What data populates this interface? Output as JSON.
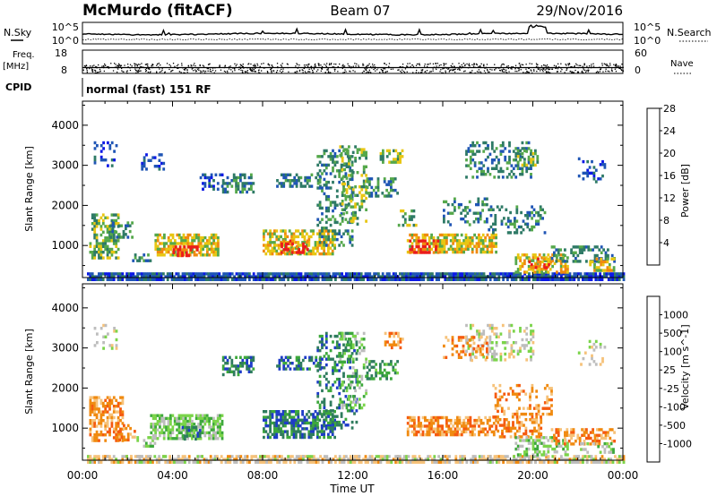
{
  "header": {
    "title": "McMurdo (fitACF)",
    "beam": "Beam 07",
    "date": "29/Nov/2016"
  },
  "chart_data": [
    {
      "type": "line",
      "id": "noise-panel",
      "left_label": "N.Sky",
      "right_label": "N.Search",
      "left_ticks": [
        "10^5",
        "10^0"
      ],
      "right_ticks": [
        "10^5",
        "10^0"
      ],
      "x_range": [
        "00:00",
        "24:00"
      ]
    },
    {
      "type": "scatter",
      "id": "freq-panel",
      "left_label": "Freq.",
      "left_unit": "[MHz]",
      "right_label": "Nave",
      "left_ticks": [
        "18",
        "8"
      ],
      "right_ticks": [
        "60",
        "0"
      ],
      "left_range": [
        8,
        18
      ],
      "right_range": [
        0,
        60
      ]
    },
    {
      "type": "table",
      "id": "cpid-panel",
      "label": "CPID",
      "mode": "normal (fast) 151 RF"
    },
    {
      "type": "heatmap",
      "id": "power-panel",
      "ylabel": "Slant Range [km]",
      "yticks": [
        1000,
        2000,
        3000,
        4000
      ],
      "ylim": [
        200,
        4600
      ],
      "xlim": [
        0,
        24
      ],
      "colorbar": {
        "label": "Power [dB]",
        "ticks": [
          "4",
          "8",
          "12",
          "16",
          "20",
          "24",
          "28"
        ],
        "colors": [
          "#0b18e6",
          "#1f55b5",
          "#2e7a66",
          "#55a84b",
          "#e8c613",
          "#f08a0f",
          "#ea1c1c"
        ]
      },
      "regions": [
        {
          "t": [
            0.2,
            24
          ],
          "r": [
            180,
            330
          ],
          "level": 1,
          "density": 0.9
        },
        {
          "t": [
            0.3,
            1.6
          ],
          "r": [
            700,
            1800
          ],
          "level": 3,
          "density": 0.55
        },
        {
          "t": [
            1.2,
            2.2
          ],
          "r": [
            1200,
            1600
          ],
          "level": 2,
          "density": 0.45
        },
        {
          "t": [
            2.2,
            3.0
          ],
          "r": [
            600,
            800
          ],
          "level": 2,
          "density": 0.35
        },
        {
          "t": [
            3.2,
            6.0
          ],
          "r": [
            750,
            1300
          ],
          "level": 4,
          "density": 0.7
        },
        {
          "t": [
            4.0,
            5.2
          ],
          "r": [
            720,
            1000
          ],
          "level": 6,
          "density": 0.55
        },
        {
          "t": [
            2.6,
            3.6
          ],
          "r": [
            2900,
            3300
          ],
          "level": 1,
          "density": 0.35
        },
        {
          "t": [
            0.5,
            1.5
          ],
          "r": [
            3000,
            3600
          ],
          "level": 1,
          "density": 0.2
        },
        {
          "t": [
            5.2,
            6.2
          ],
          "r": [
            2400,
            2800
          ],
          "level": 1,
          "density": 0.3
        },
        {
          "t": [
            6.2,
            7.6
          ],
          "r": [
            2300,
            2800
          ],
          "level": 2,
          "density": 0.5
        },
        {
          "t": [
            8.0,
            11.2
          ],
          "r": [
            800,
            1400
          ],
          "level": 4,
          "density": 0.65
        },
        {
          "t": [
            8.8,
            10.0
          ],
          "r": [
            850,
            1150
          ],
          "level": 6,
          "density": 0.45
        },
        {
          "t": [
            8.6,
            10.6
          ],
          "r": [
            2500,
            2800
          ],
          "level": 2,
          "density": 0.45
        },
        {
          "t": [
            10.4,
            12.0
          ],
          "r": [
            1000,
            3400
          ],
          "level": 2,
          "density": 0.38
        },
        {
          "t": [
            11.4,
            12.6
          ],
          "r": [
            1500,
            3500
          ],
          "level": 3,
          "density": 0.35
        },
        {
          "t": [
            12.6,
            14.0
          ],
          "r": [
            2200,
            2700
          ],
          "level": 2,
          "density": 0.4
        },
        {
          "t": [
            13.2,
            14.2
          ],
          "r": [
            3100,
            3400
          ],
          "level": 3,
          "density": 0.5
        },
        {
          "t": [
            14.0,
            14.8
          ],
          "r": [
            1500,
            1900
          ],
          "level": 3,
          "density": 0.5
        },
        {
          "t": [
            14.4,
            18.4
          ],
          "r": [
            800,
            1300
          ],
          "level": 4,
          "density": 0.62
        },
        {
          "t": [
            14.5,
            15.8
          ],
          "r": [
            850,
            1150
          ],
          "level": 6,
          "density": 0.55
        },
        {
          "t": [
            16.0,
            18.0
          ],
          "r": [
            1500,
            2200
          ],
          "level": 2,
          "density": 0.3
        },
        {
          "t": [
            18.0,
            20.5
          ],
          "r": [
            1300,
            2000
          ],
          "level": 2,
          "density": 0.3
        },
        {
          "t": [
            17.0,
            20.0
          ],
          "r": [
            2700,
            3600
          ],
          "level": 2,
          "density": 0.38
        },
        {
          "t": [
            19.2,
            20.2
          ],
          "r": [
            3000,
            3400
          ],
          "level": 3,
          "density": 0.4
        },
        {
          "t": [
            19.2,
            21.5
          ],
          "r": [
            350,
            800
          ],
          "level": 4,
          "density": 0.6
        },
        {
          "t": [
            19.8,
            20.8
          ],
          "r": [
            450,
            700
          ],
          "level": 5,
          "density": 0.5
        },
        {
          "t": [
            20.8,
            23.6
          ],
          "r": [
            600,
            1000
          ],
          "level": 2,
          "density": 0.45
        },
        {
          "t": [
            22.5,
            23.6
          ],
          "r": [
            400,
            700
          ],
          "level": 4,
          "density": 0.4
        },
        {
          "t": [
            22.0,
            23.2
          ],
          "r": [
            2600,
            3200
          ],
          "level": 1,
          "density": 0.25
        }
      ]
    },
    {
      "type": "heatmap",
      "id": "velocity-panel",
      "ylabel": "Slant Range [km]",
      "yticks": [
        1000,
        2000,
        3000,
        4000
      ],
      "ylim": [
        200,
        4600
      ],
      "xlim": [
        0,
        24
      ],
      "xticks": [
        "00:00",
        "04:00",
        "08:00",
        "12:00",
        "16:00",
        "20:00",
        "00:00"
      ],
      "xlabel": "Time UT",
      "colorbar": {
        "label": "Velocity [m s^-1]",
        "ticks": [
          "1000",
          "500",
          "100",
          "25",
          "-25",
          "-100",
          "-500",
          "-1000"
        ],
        "colors": [
          "#1e3cc8",
          "#2f7c5e",
          "#3da83c",
          "#7bd44a",
          "#bdbdbd",
          "#f6c27a",
          "#f08a10",
          "#f55a0f",
          "#e71d1d"
        ]
      },
      "regions": [
        {
          "t": [
            0.2,
            24
          ],
          "r": [
            180,
            330
          ],
          "level": 5,
          "density": 0.55
        },
        {
          "t": [
            0.2,
            24
          ],
          "r": [
            180,
            330
          ],
          "level": 4,
          "density": 0.3
        },
        {
          "t": [
            0.3,
            1.8
          ],
          "r": [
            700,
            1800
          ],
          "level": 6,
          "density": 0.6
        },
        {
          "t": [
            1.6,
            2.4
          ],
          "r": [
            700,
            1100
          ],
          "level": 6,
          "density": 0.4
        },
        {
          "t": [
            2.4,
            3.2
          ],
          "r": [
            550,
            800
          ],
          "level": 3,
          "density": 0.4
        },
        {
          "t": [
            3.0,
            6.2
          ],
          "r": [
            750,
            1350
          ],
          "level": 3,
          "density": 0.72
        },
        {
          "t": [
            4.4,
            5.2
          ],
          "r": [
            760,
            1050
          ],
          "level": 1,
          "density": 0.5
        },
        {
          "t": [
            6.2,
            7.6
          ],
          "r": [
            2300,
            2800
          ],
          "level": 1,
          "density": 0.55
        },
        {
          "t": [
            8.0,
            11.2
          ],
          "r": [
            800,
            1450
          ],
          "level": 1,
          "density": 0.7
        },
        {
          "t": [
            8.6,
            10.6
          ],
          "r": [
            2500,
            2800
          ],
          "level": 1,
          "density": 0.5
        },
        {
          "t": [
            10.4,
            12.2
          ],
          "r": [
            1000,
            3400
          ],
          "level": 1,
          "density": 0.35
        },
        {
          "t": [
            11.4,
            12.6
          ],
          "r": [
            1500,
            3400
          ],
          "level": 3,
          "density": 0.3
        },
        {
          "t": [
            12.6,
            14.0
          ],
          "r": [
            2200,
            2700
          ],
          "level": 2,
          "density": 0.4
        },
        {
          "t": [
            13.4,
            14.2
          ],
          "r": [
            3000,
            3400
          ],
          "level": 6,
          "density": 0.4
        },
        {
          "t": [
            14.4,
            16.6
          ],
          "r": [
            800,
            1300
          ],
          "level": 6,
          "density": 0.7
        },
        {
          "t": [
            16.6,
            18.4
          ],
          "r": [
            800,
            1300
          ],
          "level": 6,
          "density": 0.5
        },
        {
          "t": [
            18.4,
            20.4
          ],
          "r": [
            800,
            1250
          ],
          "level": 6,
          "density": 0.45
        },
        {
          "t": [
            18.2,
            20.8
          ],
          "r": [
            1300,
            2100
          ],
          "level": 6,
          "density": 0.3
        },
        {
          "t": [
            17.0,
            20.0
          ],
          "r": [
            2700,
            3600
          ],
          "level": 4,
          "density": 0.3
        },
        {
          "t": [
            16.0,
            18.0
          ],
          "r": [
            2700,
            3300
          ],
          "level": 6,
          "density": 0.25
        },
        {
          "t": [
            19.2,
            21.5
          ],
          "r": [
            350,
            800
          ],
          "level": 3,
          "density": 0.5
        },
        {
          "t": [
            20.8,
            23.6
          ],
          "r": [
            600,
            1000
          ],
          "level": 6,
          "density": 0.5
        },
        {
          "t": [
            22.0,
            23.6
          ],
          "r": [
            400,
            650
          ],
          "level": 3,
          "density": 0.35
        },
        {
          "t": [
            0.5,
            1.5
          ],
          "r": [
            3000,
            3600
          ],
          "level": 4,
          "density": 0.2
        },
        {
          "t": [
            22.0,
            23.2
          ],
          "r": [
            2600,
            3200
          ],
          "level": 4,
          "density": 0.22
        }
      ]
    }
  ]
}
